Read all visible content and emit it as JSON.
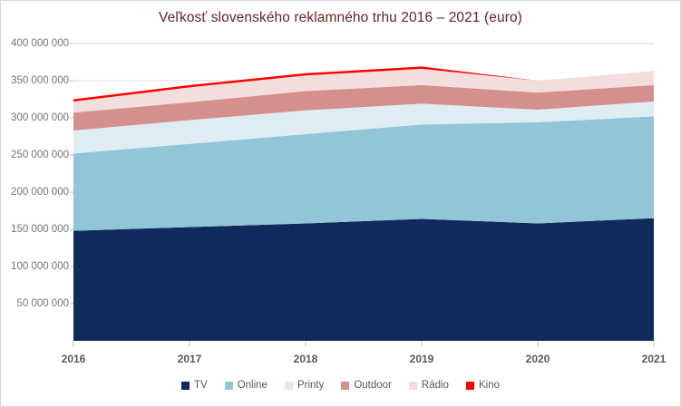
{
  "chart": {
    "title": "Veľkosť slovenského reklamného trhu 2016 – 2021 (euro)",
    "title_color": "#632423",
    "gridline_color": "#d9d9d9",
    "tick_color": "#bfbfbf",
    "axis_label_color": "#737373",
    "x_label_color": "#595959"
  },
  "chart_data": {
    "type": "area",
    "stacked": true,
    "title": "Veľkosť slovenského reklamného trhu 2016 – 2021 (euro)",
    "xlabel": "",
    "ylabel": "",
    "x": [
      2016,
      2017,
      2018,
      2019,
      2020,
      2021
    ],
    "x_tick_labels": [
      "2016",
      "2017",
      "2018",
      "2019",
      "2020",
      "2021"
    ],
    "series": [
      {
        "name": "TV",
        "color": "#0e2b5c",
        "values": [
          148000000,
          153000000,
          158000000,
          164000000,
          158000000,
          165000000
        ]
      },
      {
        "name": "Online",
        "color": "#92c5d8",
        "values": [
          104000000,
          112000000,
          120000000,
          127000000,
          136000000,
          137000000
        ]
      },
      {
        "name": "Printy",
        "color": "#ddedf3",
        "values": [
          31000000,
          32000000,
          32000000,
          28000000,
          17000000,
          20000000
        ]
      },
      {
        "name": "Outdoor",
        "color": "#d5908e",
        "values": [
          24000000,
          24000000,
          26000000,
          25000000,
          23000000,
          22000000
        ]
      },
      {
        "name": "Rádio",
        "color": "#f2dedd",
        "values": [
          15000000,
          20000000,
          21000000,
          22000000,
          16000000,
          19000000
        ]
      },
      {
        "name": "Kino",
        "color": "#fe0000",
        "values": [
          3000000,
          3000000,
          3000000,
          3000000,
          0,
          0
        ]
      }
    ],
    "ylim": [
      0,
      400000000
    ],
    "y_ticks": [
      {
        "value": 50000000,
        "label": "50 000 000"
      },
      {
        "value": 100000000,
        "label": "100 000 000"
      },
      {
        "value": 150000000,
        "label": "150 000 000"
      },
      {
        "value": 200000000,
        "label": "200 000 000"
      },
      {
        "value": 250000000,
        "label": "250 000 000"
      },
      {
        "value": 300000000,
        "label": "300 000 000"
      },
      {
        "value": 350000000,
        "label": "350 000 000"
      },
      {
        "value": 400000000,
        "label": "400 000 000"
      }
    ],
    "grid": true,
    "legend_position": "bottom",
    "legend": [
      "TV",
      "Online",
      "Printy",
      "Outdoor",
      "Rádio",
      "Kino"
    ]
  }
}
